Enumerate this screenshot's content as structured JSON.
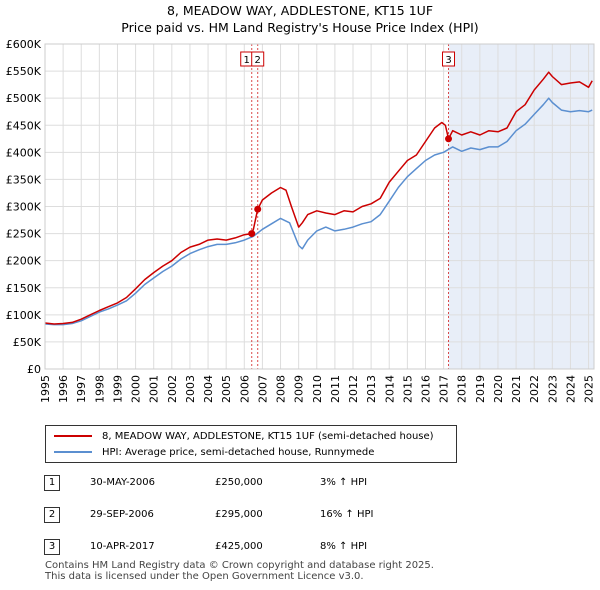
{
  "title": "8, MEADOW WAY, ADDLESTONE, KT15 1UF",
  "subtitle": "Price paid vs. HM Land Registry's House Price Index (HPI)",
  "chart_data": {
    "type": "line",
    "title": "8, MEADOW WAY, ADDLESTONE, KT15 1UF",
    "subtitle": "Price paid vs. HM Land Registry's House Price Index (HPI)",
    "xlabel": "",
    "ylabel": "",
    "xlim": [
      1995,
      2025.3
    ],
    "ylim": [
      0,
      600000
    ],
    "grid": true,
    "y_ticks": [
      0,
      50000,
      100000,
      150000,
      200000,
      250000,
      300000,
      350000,
      400000,
      450000,
      500000,
      550000,
      600000
    ],
    "y_tick_labels": [
      "£0",
      "£50K",
      "£100K",
      "£150K",
      "£200K",
      "£250K",
      "£300K",
      "£350K",
      "£400K",
      "£450K",
      "£500K",
      "£550K",
      "£600K"
    ],
    "x_ticks": [
      1995,
      1996,
      1997,
      1998,
      1999,
      2000,
      2001,
      2002,
      2003,
      2004,
      2005,
      2006,
      2007,
      2008,
      2009,
      2010,
      2011,
      2012,
      2013,
      2014,
      2015,
      2016,
      2017,
      2018,
      2019,
      2020,
      2021,
      2022,
      2023,
      2024,
      2025
    ],
    "x_tick_labels": [
      "1995",
      "1996",
      "1997",
      "1998",
      "1999",
      "2000",
      "2001",
      "2002",
      "2003",
      "2004",
      "2005",
      "2006",
      "2007",
      "2008",
      "2009",
      "2010",
      "2011",
      "2012",
      "2013",
      "2014",
      "2015",
      "2016",
      "2017",
      "2018",
      "2019",
      "2020",
      "2021",
      "2022",
      "2023",
      "2024",
      "2025"
    ],
    "shaded_region": {
      "from": 2017.27,
      "to": 2025.3
    },
    "series": [
      {
        "name": "8, MEADOW WAY, ADDLESTONE, KT15 1UF (semi-detached house)",
        "color": "#cc0000",
        "x": [
          1995.0,
          1995.5,
          1996.0,
          1996.5,
          1997.0,
          1997.5,
          1998.0,
          1998.5,
          1999.0,
          1999.5,
          2000.0,
          2000.5,
          2001.0,
          2001.5,
          2002.0,
          2002.5,
          2003.0,
          2003.5,
          2004.0,
          2004.5,
          2005.0,
          2005.5,
          2006.0,
          2006.41,
          2006.5,
          2006.74,
          2007.0,
          2007.5,
          2008.0,
          2008.3,
          2008.6,
          2009.0,
          2009.2,
          2009.5,
          2010.0,
          2010.5,
          2011.0,
          2011.5,
          2012.0,
          2012.5,
          2013.0,
          2013.5,
          2014.0,
          2014.5,
          2015.0,
          2015.5,
          2016.0,
          2016.5,
          2016.9,
          2017.1,
          2017.27,
          2017.5,
          2018.0,
          2018.5,
          2019.0,
          2019.5,
          2020.0,
          2020.5,
          2021.0,
          2021.5,
          2022.0,
          2022.5,
          2022.8,
          2023.0,
          2023.5,
          2024.0,
          2024.5,
          2025.0,
          2025.2
        ],
        "values": [
          85000,
          83000,
          84000,
          86000,
          92000,
          100000,
          108000,
          115000,
          122000,
          132000,
          148000,
          165000,
          178000,
          190000,
          200000,
          215000,
          225000,
          230000,
          238000,
          240000,
          238000,
          242000,
          248000,
          250000,
          258000,
          295000,
          312000,
          325000,
          335000,
          330000,
          300000,
          262000,
          270000,
          285000,
          292000,
          288000,
          285000,
          292000,
          290000,
          300000,
          305000,
          315000,
          345000,
          365000,
          385000,
          395000,
          420000,
          445000,
          455000,
          450000,
          425000,
          440000,
          432000,
          438000,
          432000,
          440000,
          438000,
          445000,
          475000,
          488000,
          515000,
          535000,
          548000,
          540000,
          525000,
          528000,
          530000,
          520000,
          532000
        ]
      },
      {
        "name": "HPI: Average price, semi-detached house, Runnymede",
        "color": "#5b8fd0",
        "x": [
          1995.0,
          1995.5,
          1996.0,
          1996.5,
          1997.0,
          1997.5,
          1998.0,
          1998.5,
          1999.0,
          1999.5,
          2000.0,
          2000.5,
          2001.0,
          2001.5,
          2002.0,
          2002.5,
          2003.0,
          2003.5,
          2004.0,
          2004.5,
          2005.0,
          2005.5,
          2006.0,
          2006.5,
          2007.0,
          2007.5,
          2008.0,
          2008.5,
          2009.0,
          2009.2,
          2009.5,
          2010.0,
          2010.5,
          2011.0,
          2011.5,
          2012.0,
          2012.5,
          2013.0,
          2013.5,
          2014.0,
          2014.5,
          2015.0,
          2015.5,
          2016.0,
          2016.5,
          2017.0,
          2017.5,
          2018.0,
          2018.5,
          2019.0,
          2019.5,
          2020.0,
          2020.5,
          2021.0,
          2021.5,
          2022.0,
          2022.5,
          2022.8,
          2023.0,
          2023.5,
          2024.0,
          2024.5,
          2025.0,
          2025.2
        ],
        "values": [
          83000,
          82000,
          82000,
          84000,
          89000,
          97000,
          105000,
          111000,
          118000,
          126000,
          140000,
          156000,
          168000,
          180000,
          190000,
          203000,
          213000,
          220000,
          226000,
          230000,
          230000,
          233000,
          238000,
          245000,
          258000,
          268000,
          278000,
          270000,
          228000,
          222000,
          238000,
          255000,
          262000,
          255000,
          258000,
          262000,
          268000,
          272000,
          285000,
          310000,
          335000,
          355000,
          370000,
          385000,
          395000,
          400000,
          410000,
          402000,
          408000,
          405000,
          410000,
          410000,
          420000,
          440000,
          452000,
          470000,
          488000,
          500000,
          492000,
          478000,
          475000,
          477000,
          475000,
          478000
        ]
      }
    ],
    "transactions": [
      {
        "id": "1",
        "x": 2006.41,
        "value": 250000,
        "date": "30-MAY-2006",
        "price": "£250,000",
        "hpi": "3% ↑ HPI"
      },
      {
        "id": "2",
        "x": 2006.74,
        "value": 295000,
        "date": "29-SEP-2006",
        "price": "£295,000",
        "hpi": "16% ↑ HPI"
      },
      {
        "id": "3",
        "x": 2017.27,
        "value": 425000,
        "date": "10-APR-2017",
        "price": "£425,000",
        "hpi": "8% ↑ HPI"
      }
    ]
  },
  "legend": {
    "items": [
      {
        "label": "8, MEADOW WAY, ADDLESTONE, KT15 1UF (semi-detached house)",
        "color": "#cc0000"
      },
      {
        "label": "HPI: Average price, semi-detached house, Runnymede",
        "color": "#5b8fd0"
      }
    ]
  },
  "transactions_table": [
    {
      "id": "1",
      "date": "30-MAY-2006",
      "price": "£250,000",
      "hpi": "3% ↑ HPI"
    },
    {
      "id": "2",
      "date": "29-SEP-2006",
      "price": "£295,000",
      "hpi": "16% ↑ HPI"
    },
    {
      "id": "3",
      "date": "10-APR-2017",
      "price": "£425,000",
      "hpi": "8% ↑ HPI"
    }
  ],
  "footer": {
    "line1": "Contains HM Land Registry data © Crown copyright and database right 2025.",
    "line2": "This data is licensed under the Open Government Licence v3.0."
  }
}
